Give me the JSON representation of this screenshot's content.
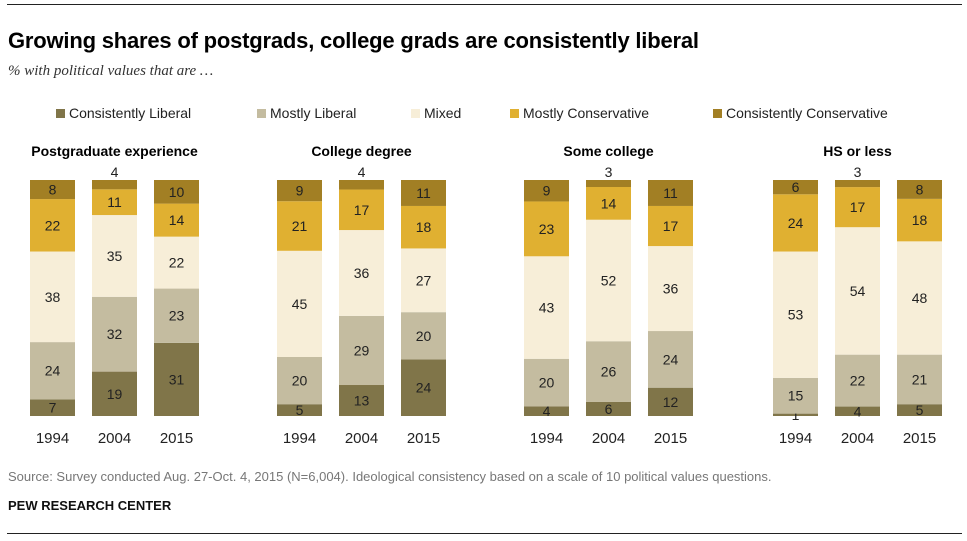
{
  "title": "Growing shares of postgrads, college grads are consistently liberal",
  "subtitle": "% with political values that are …",
  "source": "Source: Survey conducted Aug. 27-Oct. 4, 2015 (N=6,004). Ideological consistency based on a scale of 10 political values questions.",
  "brand": "PEW RESEARCH CENTER",
  "legend": [
    {
      "label": "Consistently Liberal",
      "color": "#807549"
    },
    {
      "label": "Mostly Liberal",
      "color": "#c4bca0"
    },
    {
      "label": "Mixed",
      "color": "#f7eed8"
    },
    {
      "label": "Mostly Conservative",
      "color": "#e0b031"
    },
    {
      "label": "Consistently Conservative",
      "color": "#a27f24"
    }
  ],
  "chart_data": [
    {
      "type": "bar",
      "stacked": true,
      "title": "Postgraduate experience",
      "categories": [
        "1994",
        "2004",
        "2015"
      ],
      "series": [
        {
          "name": "Consistently Liberal",
          "values": [
            7,
            19,
            31
          ]
        },
        {
          "name": "Mostly Liberal",
          "values": [
            24,
            32,
            23
          ]
        },
        {
          "name": "Mixed",
          "values": [
            38,
            35,
            22
          ]
        },
        {
          "name": "Mostly Conservative",
          "values": [
            22,
            11,
            14
          ]
        },
        {
          "name": "Consistently Conservative",
          "values": [
            8,
            4,
            10
          ]
        }
      ]
    },
    {
      "type": "bar",
      "stacked": true,
      "title": "College degree",
      "categories": [
        "1994",
        "2004",
        "2015"
      ],
      "series": [
        {
          "name": "Consistently Liberal",
          "values": [
            5,
            13,
            24
          ]
        },
        {
          "name": "Mostly Liberal",
          "values": [
            20,
            29,
            20
          ]
        },
        {
          "name": "Mixed",
          "values": [
            45,
            36,
            27
          ]
        },
        {
          "name": "Mostly Conservative",
          "values": [
            21,
            17,
            18
          ]
        },
        {
          "name": "Consistently Conservative",
          "values": [
            9,
            4,
            11
          ]
        }
      ]
    },
    {
      "type": "bar",
      "stacked": true,
      "title": "Some college",
      "categories": [
        "1994",
        "2004",
        "2015"
      ],
      "series": [
        {
          "name": "Consistently Liberal",
          "values": [
            4,
            6,
            12
          ]
        },
        {
          "name": "Mostly Liberal",
          "values": [
            20,
            26,
            24
          ]
        },
        {
          "name": "Mixed",
          "values": [
            43,
            52,
            36
          ]
        },
        {
          "name": "Mostly Conservative",
          "values": [
            23,
            14,
            17
          ]
        },
        {
          "name": "Consistently Conservative",
          "values": [
            9,
            3,
            11
          ]
        }
      ]
    },
    {
      "type": "bar",
      "stacked": true,
      "title": "HS or less",
      "categories": [
        "1994",
        "2004",
        "2015"
      ],
      "series": [
        {
          "name": "Consistently Liberal",
          "values": [
            1,
            4,
            5
          ]
        },
        {
          "name": "Mostly Liberal",
          "values": [
            15,
            22,
            21
          ]
        },
        {
          "name": "Mixed",
          "values": [
            53,
            54,
            48
          ]
        },
        {
          "name": "Mostly Conservative",
          "values": [
            24,
            17,
            18
          ]
        },
        {
          "name": "Consistently Conservative",
          "values": [
            6,
            3,
            8
          ]
        }
      ]
    }
  ]
}
